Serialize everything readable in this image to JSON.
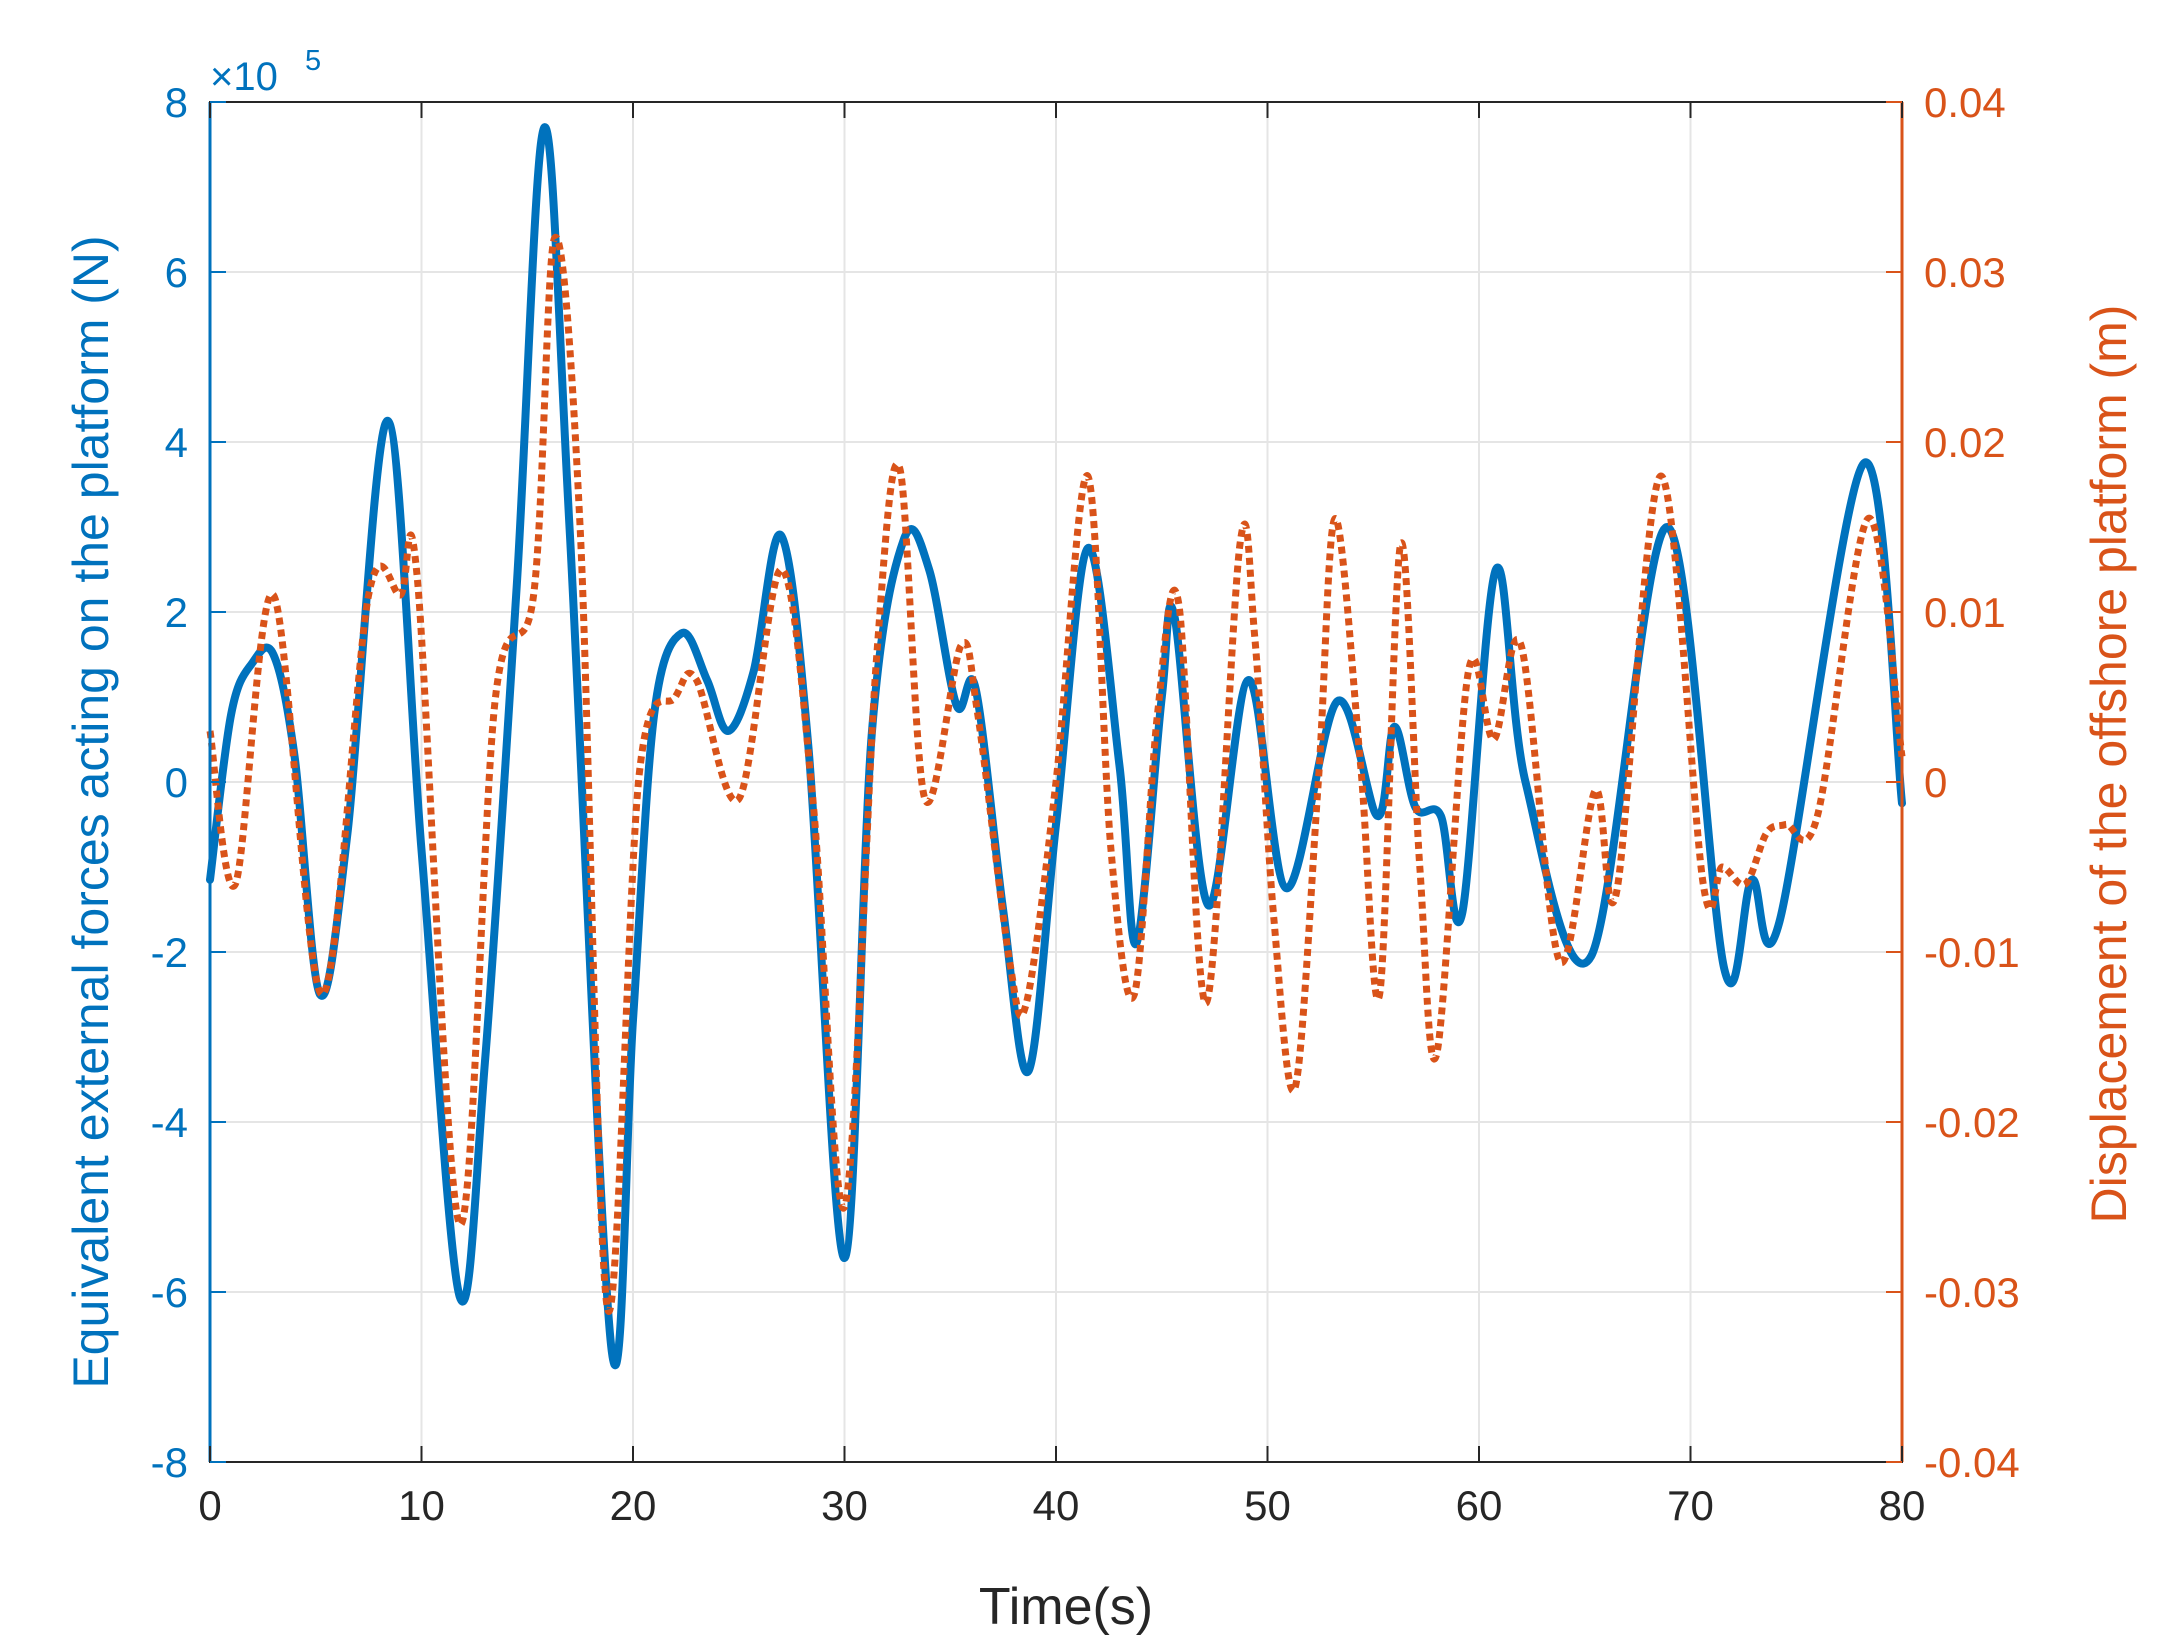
{
  "chart_data": {
    "type": "line",
    "title": "",
    "xlabel": "Time(s)",
    "xlim": [
      0,
      80
    ],
    "xticks": [
      0,
      10,
      20,
      30,
      40,
      50,
      60,
      70,
      80
    ],
    "xtick_labels": [
      "0",
      "10",
      "20",
      "30",
      "40",
      "50",
      "60",
      "70",
      "80"
    ],
    "ylabel_left": "Equivalent external forces acting on the platform (N)",
    "ylim_left": [
      -800000,
      800000
    ],
    "yticks_left": [
      -800000,
      -600000,
      -400000,
      -200000,
      0,
      200000,
      400000,
      600000,
      800000
    ],
    "ytick_labels_left": [
      "-8",
      "-6",
      "-4",
      "-2",
      "0",
      "2",
      "4",
      "6",
      "8"
    ],
    "exponent_left": {
      "base": "×10",
      "power": "5"
    },
    "ylabel_right": "Displacement of the offshore platform (m)",
    "ylim_right": [
      -0.04,
      0.04
    ],
    "yticks_right": [
      -0.04,
      -0.03,
      -0.02,
      -0.01,
      0,
      0.01,
      0.02,
      0.03,
      0.04
    ],
    "ytick_labels_right": [
      "-0.04",
      "-0.03",
      "-0.02",
      "-0.01",
      "0",
      "0.01",
      "0.02",
      "0.03",
      "0.04"
    ],
    "grid": true,
    "colors": {
      "left": "#0072BD",
      "right": "#D95319",
      "axis": "#262626",
      "grid": "#e5e5e5"
    },
    "series": [
      {
        "axis": "left",
        "style": "solid",
        "x": [
          0,
          1,
          2,
          3,
          4,
          5.2,
          6.5,
          8.4,
          10,
          11.8,
          13,
          14.5,
          15.8,
          17,
          19,
          20,
          21,
          22.3,
          23.5,
          24.5,
          25.7,
          27,
          28.3,
          30,
          31.3,
          32.8,
          34,
          35.3,
          36.2,
          37.5,
          38.7,
          40,
          41.5,
          43,
          43.8,
          45,
          45.6,
          47.2,
          49.1,
          50.9,
          53.3,
          55.2,
          56,
          57,
          58.2,
          59.2,
          60.8,
          62.2,
          65.3,
          68.9,
          71.6,
          72.9,
          74.2,
          78.2,
          80
        ],
        "y": [
          -115000,
          80000,
          140000,
          150000,
          30000,
          -250000,
          -60000,
          425000,
          -80000,
          -605000,
          -330000,
          230000,
          770000,
          300000,
          -670000,
          -280000,
          80000,
          175000,
          120000,
          60000,
          130000,
          290000,
          40000,
          -560000,
          60000,
          285000,
          250000,
          90000,
          110000,
          -150000,
          -340000,
          -50000,
          275000,
          20000,
          -190000,
          100000,
          195000,
          -145000,
          120000,
          -125000,
          95000,
          -40000,
          65000,
          -30000,
          -40000,
          -155000,
          250000,
          0,
          -205000,
          300000,
          -220000,
          -115000,
          -165000,
          375000,
          -25000
        ]
      },
      {
        "axis": "right",
        "style": "dotted",
        "x": [
          0,
          1.2,
          3,
          5.3,
          7.5,
          9,
          9.8,
          11.8,
          13.5,
          15.3,
          16.3,
          17.5,
          18.8,
          20.3,
          22,
          23,
          25,
          27,
          28.5,
          30,
          31.5,
          32.6,
          33.8,
          35.5,
          36.3,
          37.8,
          38.6,
          40,
          41.5,
          42.6,
          43.7,
          44.8,
          45.8,
          47.1,
          48.7,
          49.4,
          50.3,
          51.3,
          52.4,
          53.2,
          54.4,
          55.3,
          56.3,
          57.2,
          58,
          59.5,
          60.7,
          62,
          63.8,
          65.5,
          66.5,
          68.6,
          70.6,
          71.5,
          72.6,
          73.6,
          74.5,
          76,
          78.4,
          80
        ],
        "y": [
          0.003,
          -0.006,
          0.011,
          -0.0125,
          0.011,
          0.011,
          0.012,
          -0.026,
          0.005,
          0.011,
          0.032,
          0.015,
          -0.031,
          0.0005,
          0.005,
          0.006,
          -0.001,
          0.0125,
          -0.001,
          -0.025,
          0.007,
          0.0185,
          -0.001,
          0.008,
          0.004,
          -0.0105,
          -0.013,
          0,
          0.018,
          -0.004,
          -0.0125,
          0.004,
          0.0105,
          -0.013,
          0.014,
          0.0085,
          -0.008,
          -0.018,
          0,
          0.0155,
          0.001,
          -0.0125,
          0.014,
          -0.005,
          -0.016,
          0.0065,
          0.0025,
          0.008,
          -0.0105,
          -0.0005,
          -0.0065,
          0.018,
          -0.006,
          -0.005,
          -0.006,
          -0.003,
          -0.0025,
          -0.002,
          0.0155,
          0.0015
        ]
      }
    ]
  }
}
